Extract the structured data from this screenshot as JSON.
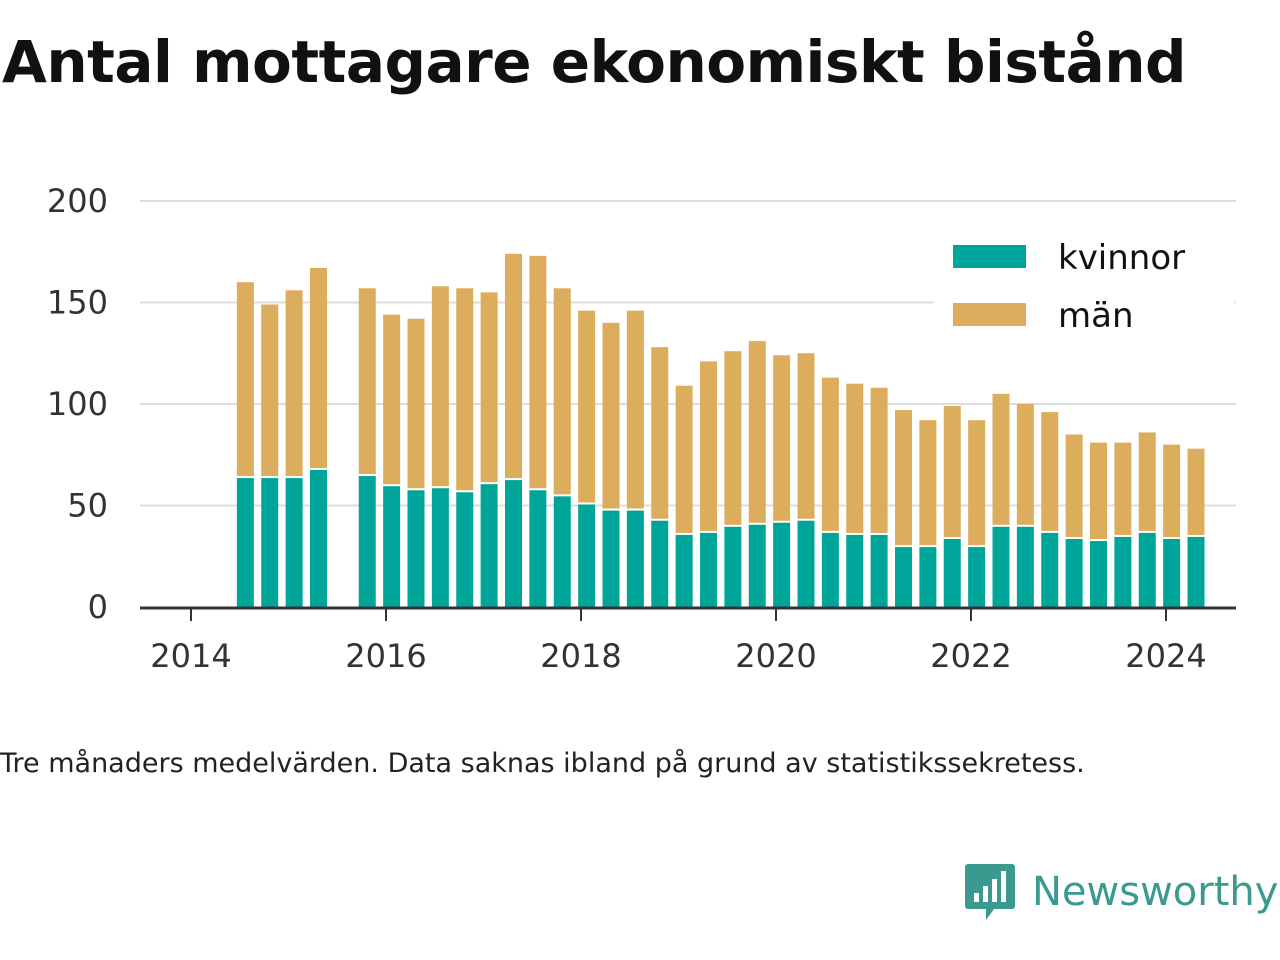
{
  "title": "Antal mottagare ekonomiskt bistånd",
  "note": "Tre månaders medelvärden. Data saknas ibland på grund av statistikssekretess.",
  "brand": {
    "name": "Newsworthy",
    "icon": "newsworthy-logo-icon",
    "color": "#3a9a8f"
  },
  "colors": {
    "kvinnor": "#00a59a",
    "man": "#dcad5c",
    "grid": "#dddddd",
    "axis": "#333333"
  },
  "chart_data": {
    "type": "bar",
    "stacked": true,
    "ylim": [
      0,
      200
    ],
    "yticks": [
      0,
      50,
      100,
      150,
      200
    ],
    "xticks": [
      "2014",
      "2016",
      "2018",
      "2020",
      "2022",
      "2024"
    ],
    "grid": true,
    "legend_position": "top-right",
    "periods": [
      "2014-04",
      "2014-07",
      "2014-10",
      "2015-01",
      "2015-07",
      "2015-10",
      "2016-01",
      "2016-04",
      "2016-07",
      "2016-10",
      "2017-01",
      "2017-04",
      "2017-07",
      "2017-10",
      "2018-01",
      "2018-04",
      "2018-07",
      "2018-10",
      "2019-01",
      "2019-04",
      "2019-07",
      "2019-10",
      "2020-01",
      "2020-04",
      "2020-07",
      "2020-10",
      "2021-01",
      "2021-04",
      "2021-07",
      "2021-10",
      "2022-01",
      "2022-04",
      "2022-07",
      "2022-10",
      "2023-01",
      "2023-04",
      "2023-07",
      "2023-10",
      "2024-01"
    ],
    "series": [
      {
        "name": "kvinnor",
        "color": "#00a59a",
        "values": [
          64,
          64,
          64,
          68,
          65,
          60,
          58,
          59,
          57,
          61,
          63,
          58,
          55,
          51,
          48,
          48,
          43,
          36,
          37,
          40,
          41,
          42,
          43,
          37,
          36,
          36,
          30,
          30,
          34,
          30,
          40,
          40,
          37,
          34,
          33,
          35,
          37,
          34,
          35
        ]
      },
      {
        "name": "män",
        "color": "#dcad5c",
        "values": [
          96,
          85,
          92,
          99,
          92,
          84,
          84,
          99,
          100,
          94,
          111,
          115,
          102,
          95,
          92,
          98,
          85,
          73,
          84,
          86,
          90,
          82,
          82,
          76,
          74,
          72,
          67,
          62,
          65,
          62,
          65,
          60,
          59,
          51,
          48,
          46,
          49,
          46,
          43
        ]
      }
    ]
  }
}
